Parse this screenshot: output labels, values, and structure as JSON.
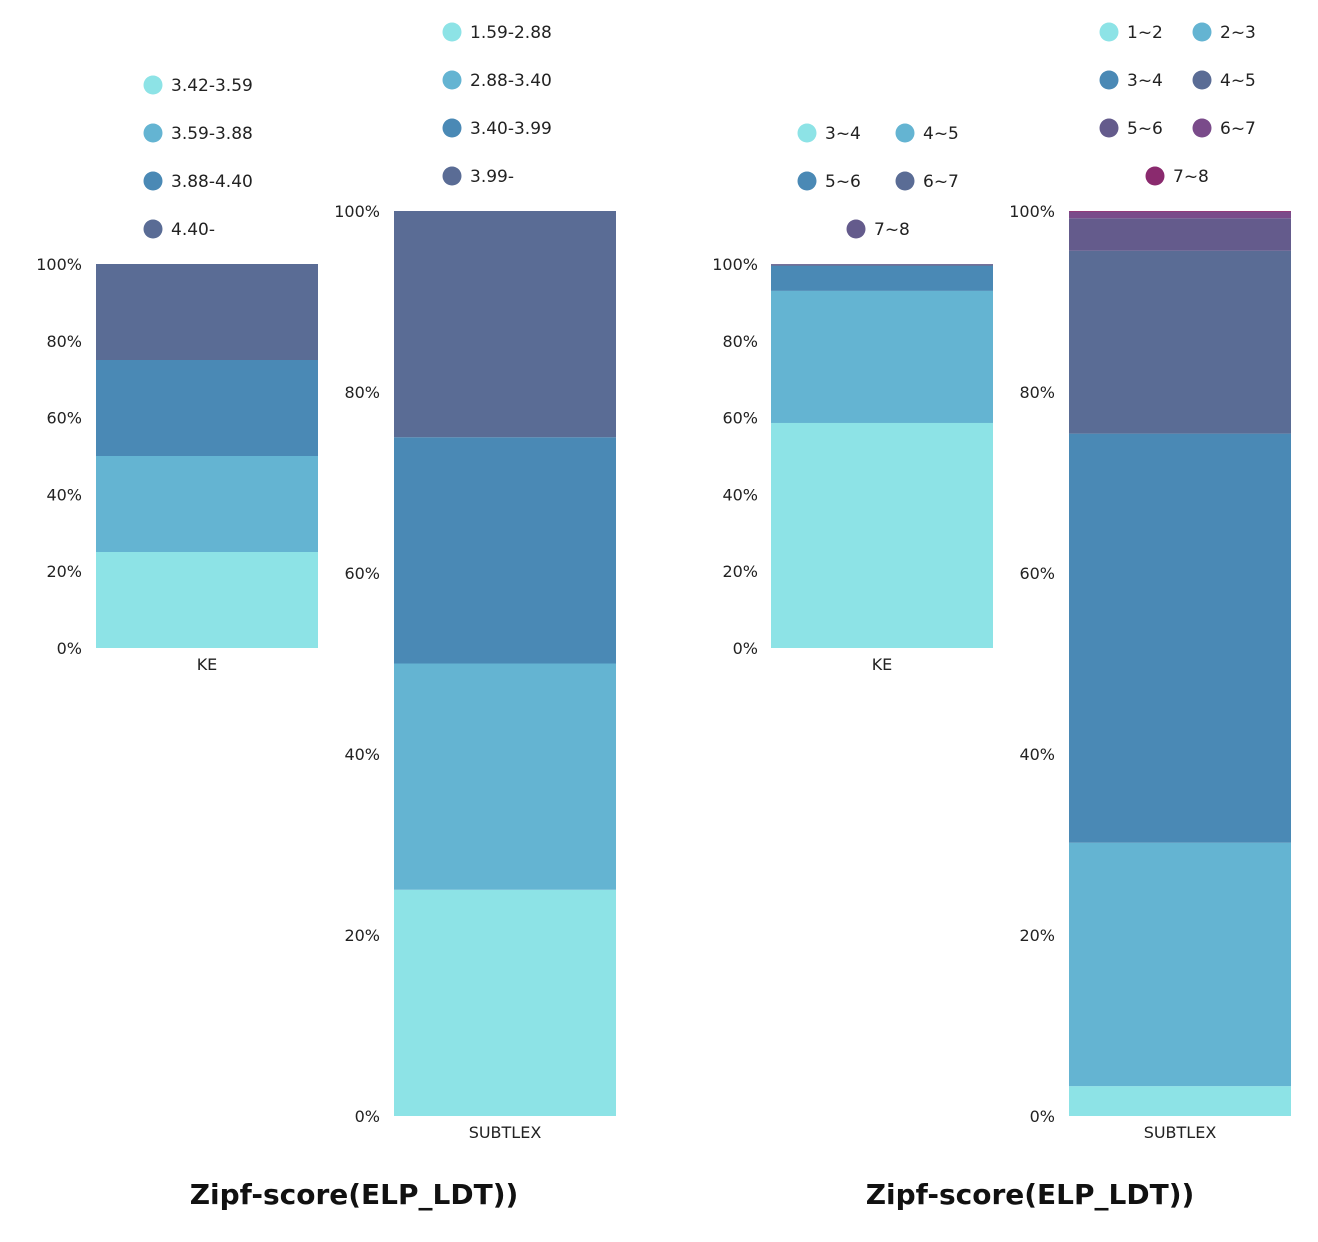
{
  "chart_data": [
    {
      "type": "bar",
      "stacked": true,
      "title": "Zipf-score(ELP_LDT))",
      "panels": [
        {
          "category": "KE",
          "ylim": [
            0,
            100
          ],
          "yticks": [
            "0%",
            "20%",
            "40%",
            "60%",
            "80%",
            "100%"
          ],
          "series": [
            {
              "name": "3.42-3.59",
              "value": 25,
              "color": "#8de3e6"
            },
            {
              "name": "3.59-3.88",
              "value": 25,
              "color": "#64b4d2"
            },
            {
              "name": "3.88-4.40",
              "value": 25,
              "color": "#4a89b5"
            },
            {
              "name": "4.40-",
              "value": 25,
              "color": "#5a6c95"
            }
          ]
        },
        {
          "category": "SUBTLEX",
          "ylim": [
            0,
            100
          ],
          "yticks": [
            "0%",
            "20%",
            "40%",
            "60%",
            "80%",
            "100%"
          ],
          "series": [
            {
              "name": "1.59-2.88",
              "value": 25,
              "color": "#8de3e6"
            },
            {
              "name": "2.88-3.40",
              "value": 25,
              "color": "#64b4d2"
            },
            {
              "name": "3.40-3.99",
              "value": 25,
              "color": "#4a89b5"
            },
            {
              "name": "3.99-",
              "value": 25,
              "color": "#5a6c95"
            }
          ]
        }
      ]
    },
    {
      "type": "bar",
      "stacked": true,
      "title": "Zipf-score(ELP_LDT))",
      "panels": [
        {
          "category": "KE",
          "ylim": [
            0,
            100
          ],
          "yticks": [
            "0%",
            "20%",
            "40%",
            "60%",
            "80%",
            "100%"
          ],
          "series": [
            {
              "name": "3~4",
              "value": 58.6,
              "color": "#8de3e6"
            },
            {
              "name": "4~5",
              "value": 34.4,
              "color": "#64b4d2"
            },
            {
              "name": "5~6",
              "value": 6.5,
              "color": "#4a89b5"
            },
            {
              "name": "6~7",
              "value": 0.3,
              "color": "#5a6c95"
            },
            {
              "name": "7~8",
              "value": 0.2,
              "color": "#645b8c"
            }
          ]
        },
        {
          "category": "SUBTLEX",
          "ylim": [
            0,
            100
          ],
          "yticks": [
            "0%",
            "20%",
            "40%",
            "60%",
            "80%",
            "100%"
          ],
          "series": [
            {
              "name": "1~2",
              "value": 3.3,
              "color": "#8de3e6"
            },
            {
              "name": "2~3",
              "value": 26.9,
              "color": "#64b4d2"
            },
            {
              "name": "3~4",
              "value": 45.2,
              "color": "#4a89b5"
            },
            {
              "name": "4~5",
              "value": 20.2,
              "color": "#5a6c95"
            },
            {
              "name": "5~6",
              "value": 3.6,
              "color": "#645b8c"
            },
            {
              "name": "6~7",
              "value": 0.7,
              "color": "#7a4b8a"
            },
            {
              "name": "7~8",
              "value": 0.1,
              "color": "#8a2a6e"
            }
          ]
        }
      ]
    }
  ]
}
